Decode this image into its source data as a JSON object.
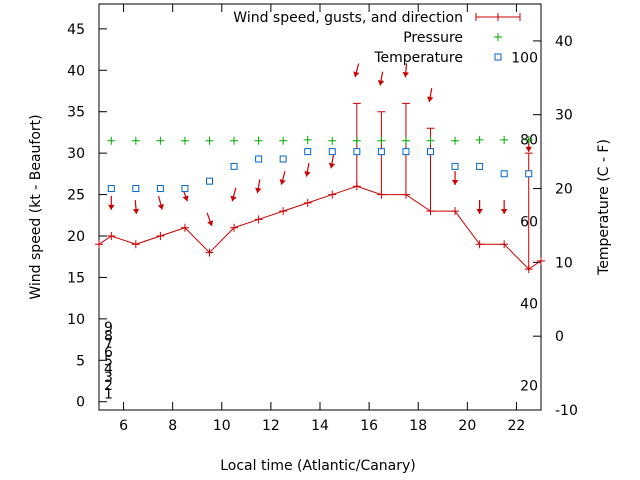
{
  "chart_data": {
    "type": "line",
    "xlabel": "Local time (Atlantic/Canary)",
    "ylabel": "Wind speed (kt - Beaufort)",
    "y2label": "Temperature (C - F)",
    "xlim": [
      5,
      23
    ],
    "ylim": [
      -1,
      48
    ],
    "y2lim": [
      -10,
      45
    ],
    "grid": false,
    "legend_position": "top-right",
    "x_ticks": [
      6,
      8,
      10,
      12,
      14,
      16,
      18,
      20,
      22
    ],
    "y_ticks": [
      0,
      5,
      10,
      15,
      20,
      25,
      30,
      35,
      40,
      45
    ],
    "y2_ticks": [
      -10,
      0,
      10,
      20,
      30,
      40
    ],
    "beaufort_labels": [
      {
        "value": 1,
        "label": "1"
      },
      {
        "value": 2,
        "label": "2"
      },
      {
        "value": 3,
        "label": "3"
      },
      {
        "value": 4,
        "label": "4"
      },
      {
        "value": 5,
        "label": "5"
      },
      {
        "value": 6,
        "label": "6"
      },
      {
        "value": 7,
        "label": "7"
      },
      {
        "value": 8,
        "label": "8"
      },
      {
        "value": 9,
        "label": "9"
      }
    ],
    "fahrenheit_labels": [
      {
        "value": 20,
        "label": "20"
      },
      {
        "value": 40,
        "label": "40"
      },
      {
        "value": 60,
        "label": "60"
      },
      {
        "value": 80,
        "label": "80"
      },
      {
        "value": 100,
        "label": "100"
      }
    ],
    "series": [
      {
        "name": "Wind speed, gusts, and direction",
        "color": "#cc0000",
        "points": [
          {
            "x": 5,
            "y": 19
          },
          {
            "x": 5.5,
            "y": 20
          },
          {
            "x": 6.5,
            "y": 19
          },
          {
            "x": 7.5,
            "y": 20
          },
          {
            "x": 8.5,
            "y": 21
          },
          {
            "x": 9.5,
            "y": 18
          },
          {
            "x": 10.5,
            "y": 21
          },
          {
            "x": 11.5,
            "y": 22
          },
          {
            "x": 12.5,
            "y": 23
          },
          {
            "x": 13.5,
            "y": 24
          },
          {
            "x": 14.5,
            "y": 25
          },
          {
            "x": 15.5,
            "y": 26,
            "gust": 36
          },
          {
            "x": 16.5,
            "y": 25,
            "gust": 35
          },
          {
            "x": 17.5,
            "y": 25,
            "gust": 36
          },
          {
            "x": 18.5,
            "y": 23,
            "gust": 33
          },
          {
            "x": 19.5,
            "y": 23
          },
          {
            "x": 20.5,
            "y": 19
          },
          {
            "x": 21.5,
            "y": 19
          },
          {
            "x": 22.5,
            "y": 16,
            "gust": 30
          },
          {
            "x": 23,
            "y": 17
          }
        ],
        "direction_arrows": [
          {
            "x": 5.5,
            "y": 24,
            "to_deg": 180
          },
          {
            "x": 6.5,
            "y": 23.5,
            "to_deg": 175
          },
          {
            "x": 7.5,
            "y": 24,
            "to_deg": 165
          },
          {
            "x": 8.5,
            "y": 25,
            "to_deg": 160
          },
          {
            "x": 9.5,
            "y": 22,
            "to_deg": 160
          },
          {
            "x": 10.5,
            "y": 25,
            "to_deg": 195
          },
          {
            "x": 11.5,
            "y": 26,
            "to_deg": 190
          },
          {
            "x": 12.5,
            "y": 27,
            "to_deg": 195
          },
          {
            "x": 13.5,
            "y": 28,
            "to_deg": 190
          },
          {
            "x": 14.5,
            "y": 29,
            "to_deg": 190
          },
          {
            "x": 15.5,
            "y": 40,
            "to_deg": 195
          },
          {
            "x": 16.5,
            "y": 39,
            "to_deg": 190
          },
          {
            "x": 17.5,
            "y": 40,
            "to_deg": 185
          },
          {
            "x": 18.5,
            "y": 37,
            "to_deg": 190
          },
          {
            "x": 19.5,
            "y": 27,
            "to_deg": 180
          },
          {
            "x": 20.5,
            "y": 23.5,
            "to_deg": 180
          },
          {
            "x": 21.5,
            "y": 23.5,
            "to_deg": 180
          },
          {
            "x": 22.5,
            "y": 31,
            "to_deg": 180
          }
        ]
      },
      {
        "name": "Pressure",
        "color": "#00aa00",
        "axis": "y",
        "points": [
          {
            "x": 5.5,
            "y": 31.5
          },
          {
            "x": 6.5,
            "y": 31.5
          },
          {
            "x": 7.5,
            "y": 31.5
          },
          {
            "x": 8.5,
            "y": 31.5
          },
          {
            "x": 9.5,
            "y": 31.5
          },
          {
            "x": 10.5,
            "y": 31.5
          },
          {
            "x": 11.5,
            "y": 31.5
          },
          {
            "x": 12.5,
            "y": 31.5
          },
          {
            "x": 13.5,
            "y": 31.6
          },
          {
            "x": 14.5,
            "y": 31.5
          },
          {
            "x": 15.5,
            "y": 31.5
          },
          {
            "x": 16.5,
            "y": 31.5
          },
          {
            "x": 17.5,
            "y": 31.5
          },
          {
            "x": 18.5,
            "y": 31.5
          },
          {
            "x": 19.5,
            "y": 31.5
          },
          {
            "x": 20.5,
            "y": 31.6
          },
          {
            "x": 21.5,
            "y": 31.6
          },
          {
            "x": 22.5,
            "y": 31.6
          }
        ]
      },
      {
        "name": "Temperature",
        "color": "#0066cc",
        "axis": "y2",
        "points": [
          {
            "x": 5.5,
            "y": 20
          },
          {
            "x": 6.5,
            "y": 20
          },
          {
            "x": 7.5,
            "y": 20
          },
          {
            "x": 8.5,
            "y": 20
          },
          {
            "x": 9.5,
            "y": 21
          },
          {
            "x": 10.5,
            "y": 23
          },
          {
            "x": 11.5,
            "y": 24
          },
          {
            "x": 12.5,
            "y": 24
          },
          {
            "x": 13.5,
            "y": 25
          },
          {
            "x": 14.5,
            "y": 25
          },
          {
            "x": 15.5,
            "y": 25
          },
          {
            "x": 16.5,
            "y": 25
          },
          {
            "x": 17.5,
            "y": 25
          },
          {
            "x": 18.5,
            "y": 25
          },
          {
            "x": 19.5,
            "y": 23
          },
          {
            "x": 20.5,
            "y": 23
          },
          {
            "x": 21.5,
            "y": 22
          },
          {
            "x": 22.5,
            "y": 22
          }
        ]
      }
    ]
  }
}
